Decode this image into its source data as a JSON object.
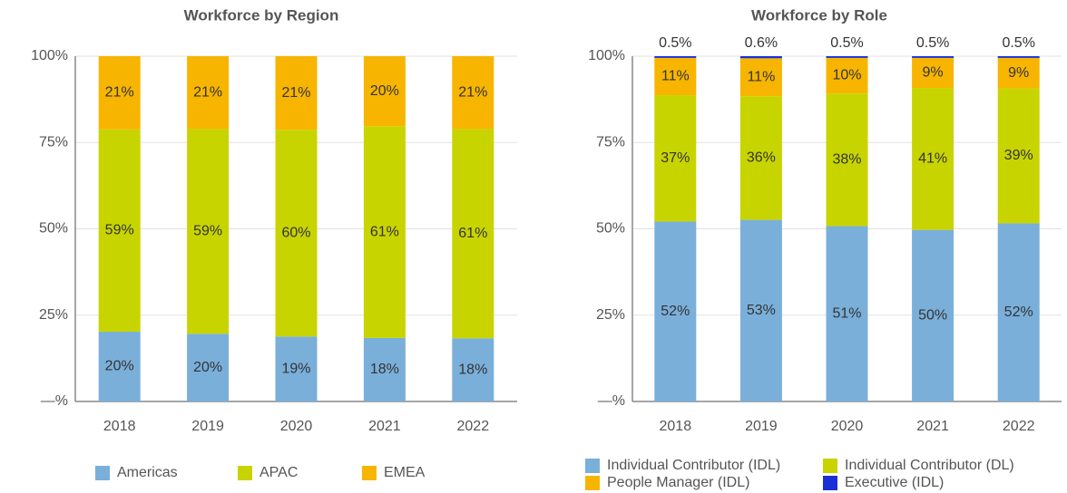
{
  "chart_data": [
    {
      "type": "bar",
      "stacked": true,
      "title": "Workforce by Region",
      "categories": [
        "2018",
        "2019",
        "2020",
        "2021",
        "2022"
      ],
      "series": [
        {
          "name": "Americas",
          "color": "#7aafda",
          "values": [
            20.2,
            19.6,
            18.8,
            18.4,
            18.3
          ],
          "value_labels": [
            "20%",
            "20%",
            "19%",
            "18%",
            "18%"
          ]
        },
        {
          "name": "APAC",
          "color": "#c8d400",
          "values": [
            58.6,
            59.3,
            59.9,
            61.3,
            60.6
          ],
          "value_labels": [
            "59%",
            "59%",
            "60%",
            "61%",
            "61%"
          ]
        },
        {
          "name": "EMEA",
          "color": "#f7b500",
          "values": [
            21.2,
            21.1,
            21.3,
            20.3,
            21.1
          ],
          "value_labels": [
            "21%",
            "21%",
            "21%",
            "20%",
            "21%"
          ]
        }
      ],
      "ylim": [
        0,
        100
      ],
      "yticks": [
        {
          "value": 0,
          "label": "—%"
        },
        {
          "value": 25,
          "label": "25%"
        },
        {
          "value": 50,
          "label": "50%"
        },
        {
          "value": 75,
          "label": "75%"
        },
        {
          "value": 100,
          "label": "100%"
        }
      ],
      "grid": true,
      "legend": "bottom"
    },
    {
      "type": "bar",
      "stacked": true,
      "title": "Workforce by Role",
      "categories": [
        "2018",
        "2019",
        "2020",
        "2021",
        "2022"
      ],
      "series": [
        {
          "name": "Individual Contributor (IDL)",
          "color": "#7aafda",
          "values": [
            52.1,
            52.6,
            50.8,
            49.7,
            51.6
          ],
          "value_labels": [
            "52%",
            "53%",
            "51%",
            "50%",
            "52%"
          ]
        },
        {
          "name": "Individual Contributor (DL)",
          "color": "#c8d400",
          "values": [
            36.6,
            35.8,
            38.4,
            41.1,
            39.1
          ],
          "value_labels": [
            "37%",
            "36%",
            "38%",
            "41%",
            "39%"
          ]
        },
        {
          "name": "People Manager (IDL)",
          "color": "#f7b500",
          "values": [
            10.8,
            11.0,
            10.3,
            8.7,
            8.8
          ],
          "value_labels": [
            "11%",
            "11%",
            "10%",
            "9%",
            "9%"
          ]
        },
        {
          "name": "Executive (IDL)",
          "color": "#1a2fd6",
          "values": [
            0.5,
            0.6,
            0.5,
            0.5,
            0.5
          ],
          "value_labels": [
            "0.5%",
            "0.6%",
            "0.5%",
            "0.5%",
            "0.5%"
          ]
        }
      ],
      "ylim": [
        0,
        100
      ],
      "yticks": [
        {
          "value": 0,
          "label": "—%"
        },
        {
          "value": 25,
          "label": "25%"
        },
        {
          "value": 50,
          "label": "50%"
        },
        {
          "value": 75,
          "label": "75%"
        },
        {
          "value": 100,
          "label": "100%"
        }
      ],
      "grid": true,
      "legend": "bottom"
    }
  ]
}
